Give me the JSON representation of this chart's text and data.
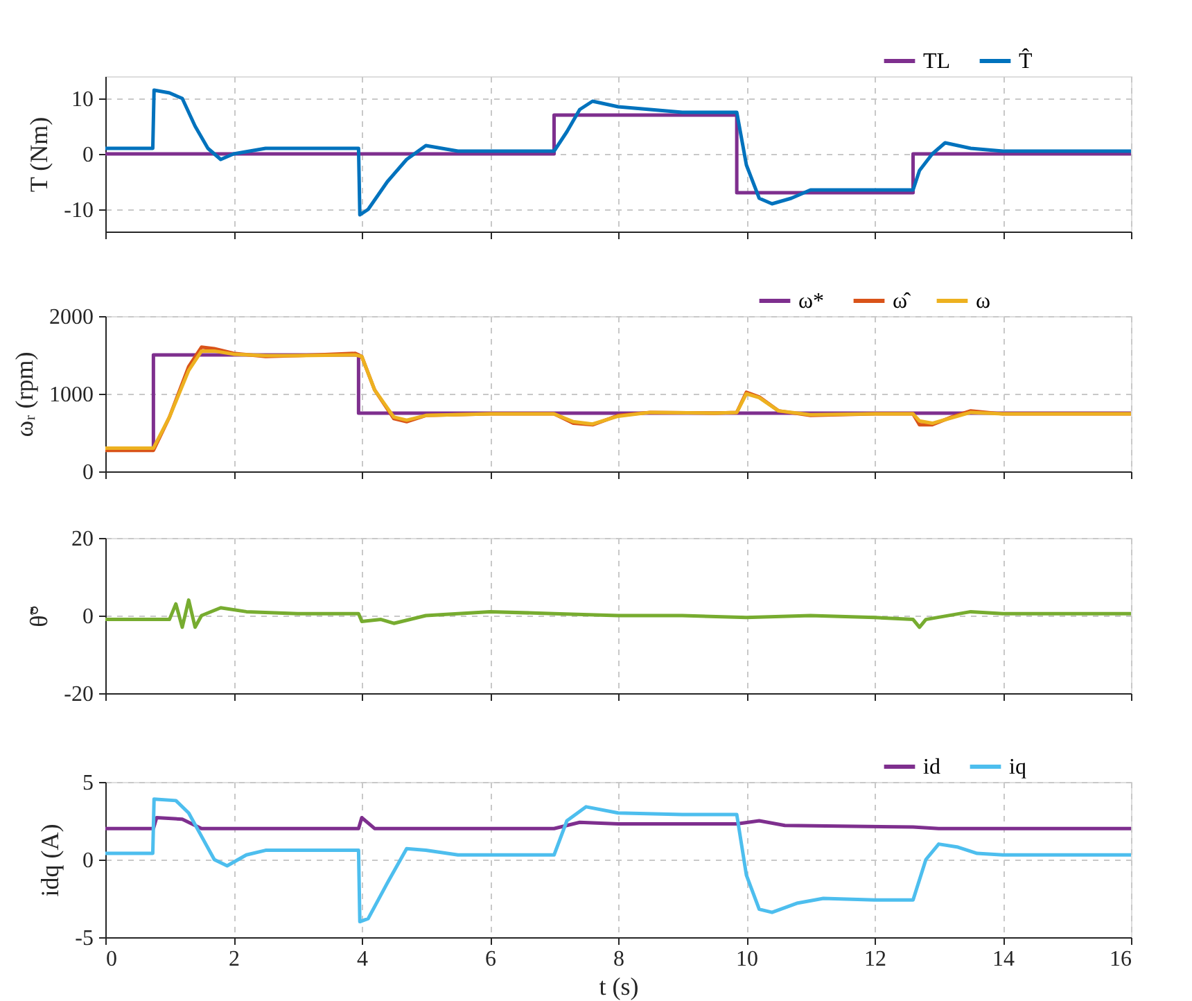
{
  "chart_data": [
    {
      "type": "line",
      "ylabel": "T (Nm)",
      "xlim": [
        0,
        16
      ],
      "xticks": [
        0,
        2,
        4,
        6,
        8,
        10,
        12,
        14,
        16
      ],
      "ylim": [
        -14,
        14
      ],
      "yticks": [
        -10,
        0,
        10
      ],
      "grid": true,
      "legend": "top right",
      "tick_labels": "y",
      "series": [
        {
          "name": "TL",
          "color": "#7e2f8e",
          "x": [
            0,
            7,
            7,
            9.85,
            9.85,
            12.6,
            12.6,
            16
          ],
          "values": [
            0,
            0,
            7,
            7,
            -7,
            -7,
            0,
            0
          ]
        },
        {
          "name": "T̂",
          "color": "#0072bd",
          "x": [
            0,
            0.74,
            0.76,
            1.0,
            1.2,
            1.4,
            1.6,
            1.8,
            2.0,
            2.5,
            3.0,
            3.95,
            3.97,
            4.1,
            4.4,
            4.7,
            5.0,
            5.5,
            6,
            7.0,
            7.2,
            7.4,
            7.6,
            8,
            8.5,
            9.0,
            9.85,
            10.0,
            10.2,
            10.4,
            10.7,
            11,
            11.5,
            12.6,
            12.7,
            12.9,
            13.1,
            13.5,
            14,
            16
          ],
          "values": [
            1,
            1,
            11.5,
            11,
            10,
            5,
            1,
            -1,
            0,
            1,
            1,
            1,
            -11,
            -10,
            -5,
            -1,
            1.5,
            0.5,
            0.5,
            0.5,
            4,
            8,
            9.5,
            8.5,
            8,
            7.5,
            7.5,
            -2,
            -8,
            -9,
            -8,
            -6.5,
            -6.5,
            -6.5,
            -3,
            0,
            2,
            1,
            0.5,
            0.5
          ]
        }
      ]
    },
    {
      "type": "line",
      "ylabel": "ωᵣ (rpm)",
      "xlim": [
        0,
        16
      ],
      "xticks": [
        0,
        2,
        4,
        6,
        8,
        10,
        12,
        14,
        16
      ],
      "ylim": [
        0,
        2000
      ],
      "yticks": [
        0,
        1000,
        2000
      ],
      "grid": true,
      "legend": "top right",
      "tick_labels": "y",
      "series": [
        {
          "name": "ω*",
          "color": "#7e2f8e",
          "x": [
            0,
            0.75,
            0.75,
            3.95,
            3.95,
            16
          ],
          "values": [
            300,
            300,
            1500,
            1500,
            750,
            750
          ]
        },
        {
          "name": "ω̂",
          "color": "#d95319",
          "x": [
            0,
            0.75,
            1.0,
            1.3,
            1.5,
            1.7,
            2.0,
            2.5,
            3.0,
            3.9,
            4.0,
            4.2,
            4.5,
            4.7,
            5.0,
            6.0,
            7.0,
            7.3,
            7.6,
            8,
            8.5,
            9.5,
            9.85,
            10.0,
            10.2,
            10.5,
            11,
            12,
            12.6,
            12.7,
            12.9,
            13.2,
            13.5,
            14,
            16
          ],
          "values": [
            270,
            270,
            700,
            1350,
            1600,
            1580,
            1520,
            1480,
            1490,
            1520,
            1480,
            1050,
            680,
            640,
            720,
            740,
            740,
            620,
            600,
            720,
            760,
            750,
            760,
            1020,
            960,
            780,
            720,
            740,
            740,
            600,
            600,
            700,
            780,
            740,
            740
          ]
        },
        {
          "name": "ω",
          "color": "#edb120",
          "x": [
            0,
            0.75,
            1.0,
            1.3,
            1.5,
            1.7,
            2.0,
            2.5,
            3.0,
            3.9,
            4.0,
            4.2,
            4.5,
            4.7,
            5.0,
            6.0,
            7.0,
            7.3,
            7.6,
            8,
            8.5,
            9.5,
            9.85,
            10.0,
            10.2,
            10.5,
            11,
            12,
            12.6,
            12.7,
            12.9,
            13.2,
            13.5,
            14,
            16
          ],
          "values": [
            300,
            300,
            700,
            1300,
            1550,
            1550,
            1510,
            1490,
            1490,
            1500,
            1480,
            1050,
            700,
            660,
            720,
            740,
            740,
            640,
            610,
            710,
            760,
            750,
            760,
            1000,
            950,
            780,
            730,
            740,
            740,
            650,
            620,
            690,
            760,
            740,
            740
          ]
        }
      ]
    },
    {
      "type": "line",
      "ylabel": "θ̃°",
      "xlim": [
        0,
        16
      ],
      "xticks": [
        0,
        2,
        4,
        6,
        8,
        10,
        12,
        14,
        16
      ],
      "ylim": [
        -20,
        20
      ],
      "yticks": [
        -20,
        0,
        20
      ],
      "grid": true,
      "tick_labels": "y",
      "series": [
        {
          "color": "#77ac30",
          "x": [
            0,
            0.5,
            1.0,
            1.1,
            1.2,
            1.3,
            1.4,
            1.5,
            1.8,
            2.2,
            3,
            3.95,
            4.0,
            4.3,
            4.5,
            5,
            6,
            7,
            8,
            9,
            10,
            11,
            12,
            12.6,
            12.7,
            12.8,
            13.5,
            14,
            16
          ],
          "values": [
            -1,
            -1,
            -1,
            3,
            -3,
            4,
            -3,
            0,
            2,
            1,
            0.5,
            0.5,
            -1.5,
            -1,
            -2,
            0,
            1,
            0.5,
            0,
            0,
            -0.5,
            0,
            -0.5,
            -1,
            -3,
            -1,
            1,
            0.5,
            0.5
          ]
        }
      ]
    },
    {
      "type": "line",
      "xlabel": "t (s)",
      "ylabel": "idq (A)",
      "xlim": [
        0,
        16
      ],
      "xticks": [
        0,
        2,
        4,
        6,
        8,
        10,
        12,
        14,
        16
      ],
      "ylim": [
        -5,
        5
      ],
      "yticks": [
        -5,
        0,
        5
      ],
      "grid": true,
      "legend": "top right",
      "series": [
        {
          "name": "id",
          "color": "#7e2f8e",
          "x": [
            0,
            0.75,
            0.8,
            1.2,
            1.5,
            3.95,
            4.0,
            4.2,
            7.0,
            7.4,
            8,
            9.85,
            10.2,
            10.6,
            12.6,
            13,
            16
          ],
          "values": [
            2,
            2,
            2.7,
            2.6,
            2.0,
            2.0,
            2.7,
            2.0,
            2.0,
            2.4,
            2.3,
            2.3,
            2.5,
            2.2,
            2.1,
            2.0,
            2.0
          ]
        },
        {
          "name": "iq",
          "color": "#4dbeee",
          "x": [
            0,
            0.74,
            0.76,
            1.1,
            1.3,
            1.5,
            1.7,
            1.9,
            2.2,
            2.5,
            3,
            3.95,
            3.97,
            4.1,
            4.4,
            4.7,
            5,
            5.5,
            7.0,
            7.2,
            7.5,
            8,
            9,
            9.85,
            10.0,
            10.2,
            10.4,
            10.8,
            11.2,
            12,
            12.6,
            12.8,
            13.0,
            13.3,
            13.6,
            14,
            16
          ],
          "values": [
            0.4,
            0.4,
            3.9,
            3.8,
            3,
            1.5,
            0,
            -0.4,
            0.3,
            0.6,
            0.6,
            0.6,
            -4,
            -3.8,
            -1.5,
            0.7,
            0.6,
            0.3,
            0.3,
            2.5,
            3.4,
            3,
            2.9,
            2.9,
            -1,
            -3.2,
            -3.4,
            -2.8,
            -2.5,
            -2.6,
            -2.6,
            0,
            1,
            0.8,
            0.4,
            0.3,
            0.3
          ]
        }
      ]
    }
  ]
}
